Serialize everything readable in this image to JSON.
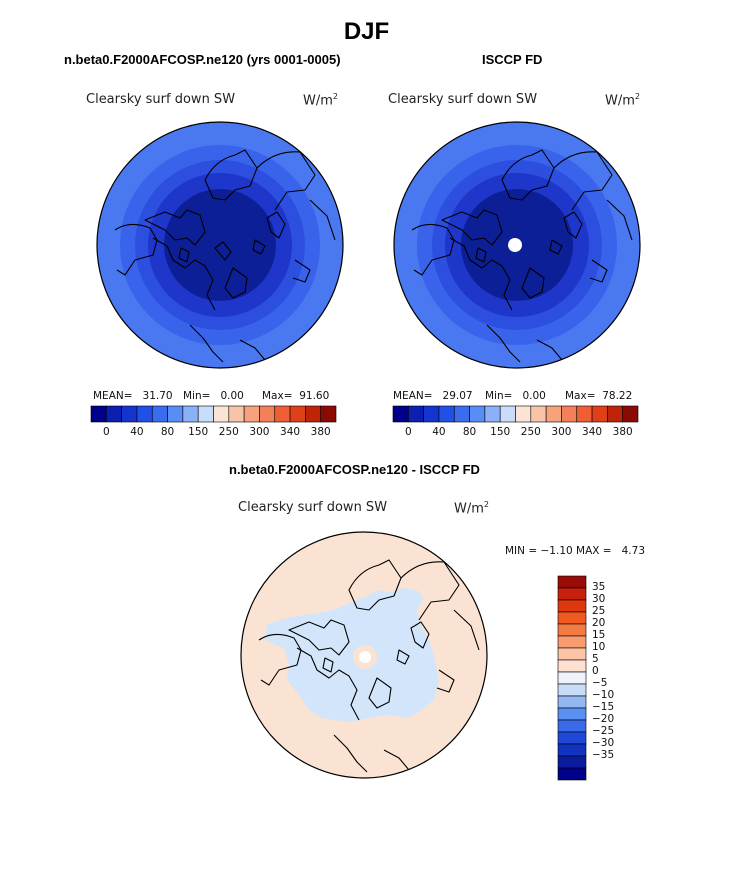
{
  "title": "DJF",
  "units_superscript": "2",
  "panels": [
    {
      "title": "n.beta0.F2000AFCOSP.ne120 (yrs 0001-0005)",
      "variable": "Clearsky surf down SW",
      "units": "W/m",
      "mean_label": "MEAN=",
      "mean": "31.70",
      "min_label": "Min=",
      "min": "0.00",
      "max_label": "Max=",
      "max": "91.60",
      "rings": [
        {
          "range_label": "0-10",
          "color": "#0d1f96"
        },
        {
          "range_label": "10-20",
          "color": "#1e36c9"
        },
        {
          "range_label": "20-40",
          "color": "#2d4fe0"
        },
        {
          "range_label": "40-60",
          "color": "#3a63ec"
        },
        {
          "range_label": "60-90",
          "color": "#4a78f0"
        }
      ]
    },
    {
      "title": "ISCCP FD",
      "variable": "Clearsky surf down SW",
      "units": "W/m",
      "mean_label": "MEAN=",
      "mean": "29.07",
      "min_label": "Min=",
      "min": "0.00",
      "max_label": "Max=",
      "max": "78.22",
      "rings": [
        {
          "range_label": "0-10",
          "color": "#0d1f96"
        },
        {
          "range_label": "10-20",
          "color": "#1e36c9"
        },
        {
          "range_label": "20-40",
          "color": "#2d4fe0"
        },
        {
          "range_label": "40-60",
          "color": "#3a63ec"
        },
        {
          "range_label": "60-80",
          "color": "#4a78f0"
        }
      ]
    }
  ],
  "colorbar_top": {
    "colors": [
      "#00008b",
      "#0b1fb0",
      "#1434d0",
      "#2050e8",
      "#3a6cf0",
      "#5a8cf5",
      "#8ab0f8",
      "#c8dcfb",
      "#fbe4d6",
      "#f8c4a8",
      "#f6a27c",
      "#f4805a",
      "#f05e36",
      "#e04018",
      "#c02408",
      "#8c0a04"
    ],
    "labels": [
      "0",
      "40",
      "80",
      "150",
      "250",
      "300",
      "340",
      "380"
    ]
  },
  "diff_panel": {
    "title": "n.beta0.F2000AFCOSP.ne120 - ISCCP FD",
    "variable": "Clearsky surf down SW",
    "units": "W/m",
    "min_label": "MIN =",
    "min": "−1.10",
    "max_label": "MAX =",
    "max": "4.73",
    "ocean_color": "#fbe3d3",
    "negative_color": "#d3e5fa",
    "pole_color": "#fbe3d3"
  },
  "colorbar_diff": {
    "colors": [
      "#9a0c08",
      "#c8200c",
      "#e0380e",
      "#f05a20",
      "#f47a44",
      "#f89c70",
      "#fcc4a4",
      "#fde0d0",
      "#eef2fb",
      "#c8dcf8",
      "#94b8f4",
      "#5a90f0",
      "#3a6ae8",
      "#2048d8",
      "#1232c0",
      "#0a1c9c",
      "#00008b"
    ],
    "labels": [
      "35",
      "30",
      "25",
      "20",
      "15",
      "10",
      "5",
      "0",
      "−5",
      "−10",
      "−15",
      "−20",
      "−25",
      "−30",
      "−35"
    ]
  }
}
